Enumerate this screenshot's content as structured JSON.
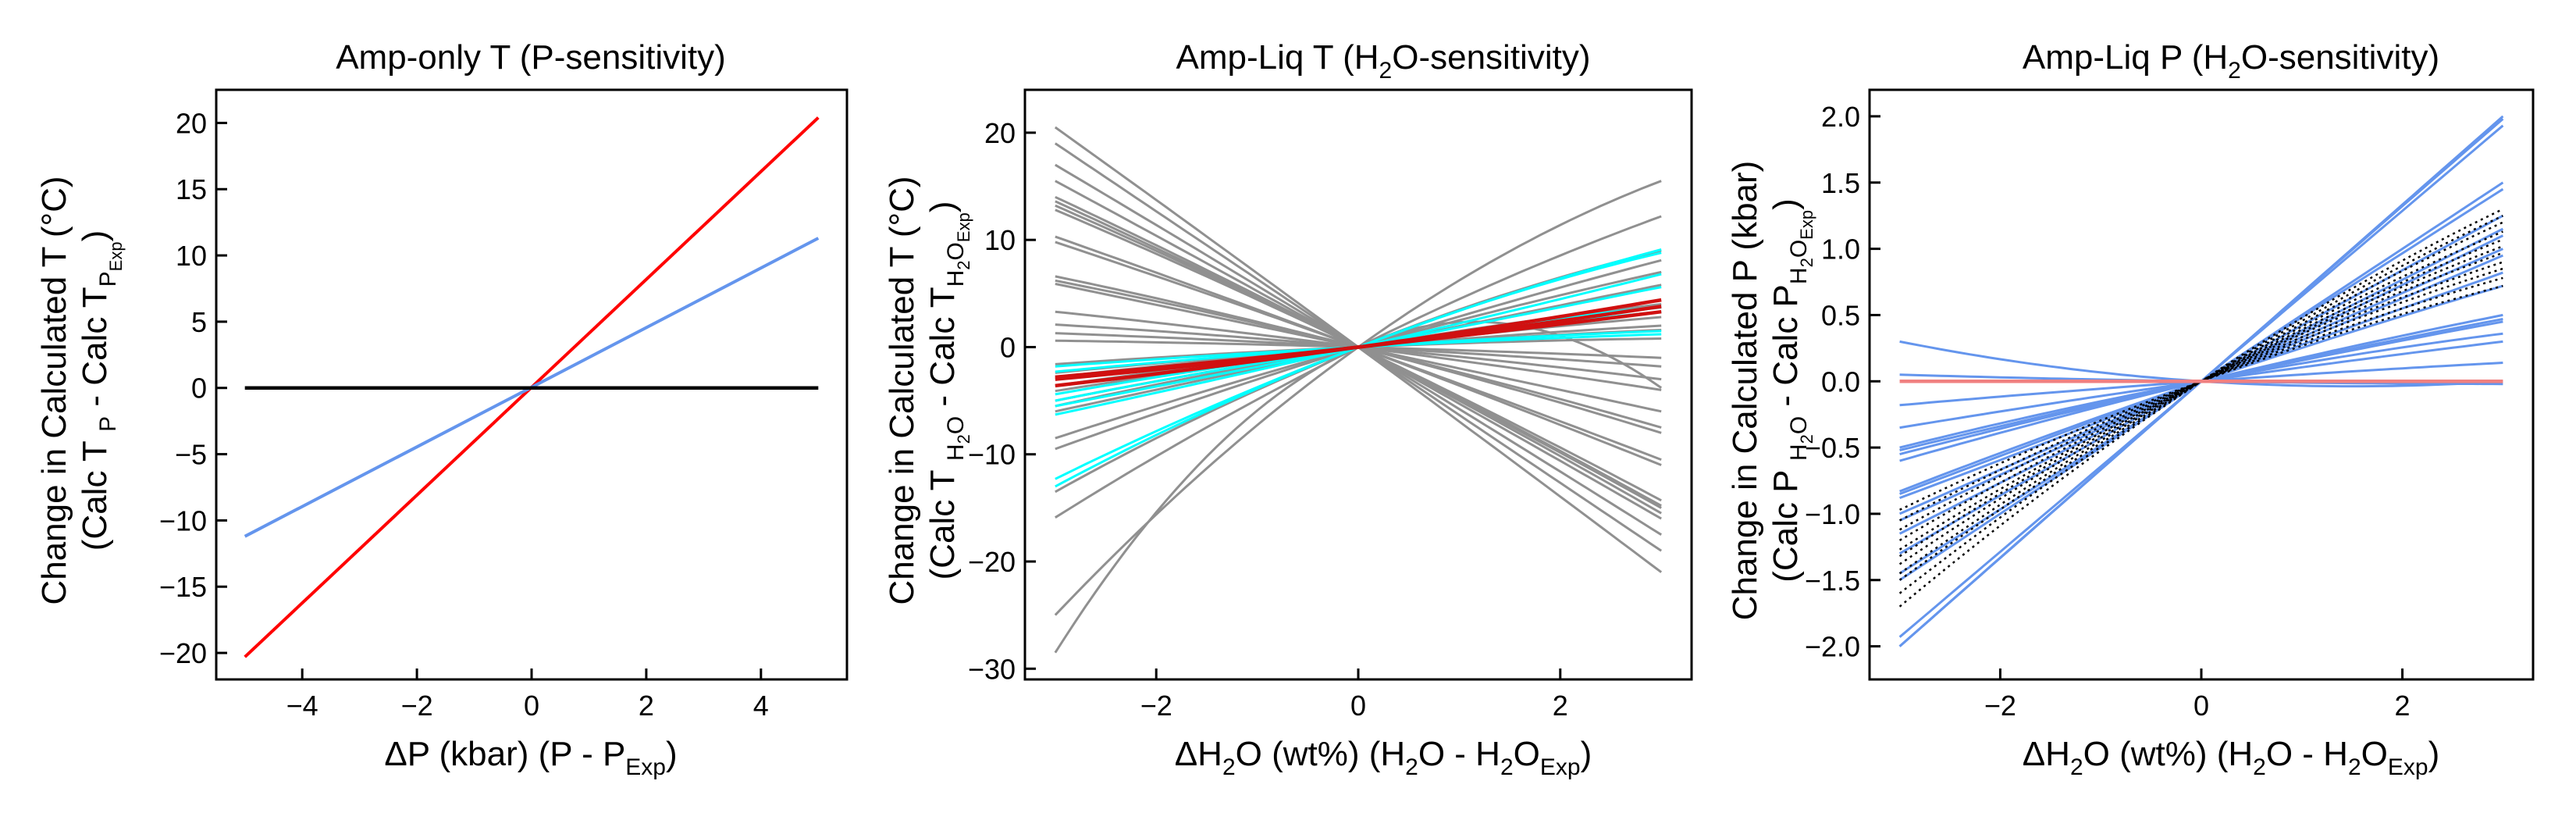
{
  "figure": {
    "panels": [
      {
        "title": "Amp-only T (P-sensitivity)",
        "xlabel_main": "ΔP (kbar) (P - P",
        "xlabel_sub": "Exp",
        "xlabel_tail": ")",
        "ylabel_line1": "Change in Calculated T (°C)",
        "ylabel_line2_a": "(Calc T ",
        "ylabel_line2_sub1": "P",
        "ylabel_line2_b": " - Calc T",
        "ylabel_line2_sub2": "P",
        "ylabel_line2_subsub": "Exp",
        "ylabel_line2_c": ")"
      },
      {
        "title_a": "Amp-Liq T (H",
        "title_sub": "2",
        "title_b": "O-sensitivity)",
        "xlabel_a": "ΔH",
        "xlabel_s1": "2",
        "xlabel_b": "O (wt%) (H",
        "xlabel_s2": "2",
        "xlabel_c": "O - H",
        "xlabel_s3": "2",
        "xlabel_d": "O",
        "xlabel_s4": "Exp",
        "xlabel_e": ")",
        "ylabel_line1": "Change in Calculated T (°C)",
        "ylabel_line2_a": "(Calc T ",
        "ylabel_line2_sub1": "H",
        "ylabel_line2_sub1b": "2",
        "ylabel_line2_sub1c": "O",
        "ylabel_line2_b": " - Calc T",
        "ylabel_line2_sub2": "H",
        "ylabel_line2_sub2b": "2",
        "ylabel_line2_sub2c": "O",
        "ylabel_line2_subsub": "Exp",
        "ylabel_line2_c": ")"
      },
      {
        "title_a": "Amp-Liq P (H",
        "title_sub": "2",
        "title_b": "O-sensitivity)",
        "xlabel_a": "ΔH",
        "xlabel_s1": "2",
        "xlabel_b": "O (wt%) (H",
        "xlabel_s2": "2",
        "xlabel_c": "O - H",
        "xlabel_s3": "2",
        "xlabel_d": "O",
        "xlabel_s4": "Exp",
        "xlabel_e": ")",
        "ylabel_line1": "Change in Calculated P (kbar)",
        "ylabel_line2_a": "(Calc P ",
        "ylabel_line2_sub1": "H",
        "ylabel_line2_sub1b": "2",
        "ylabel_line2_sub1c": "O",
        "ylabel_line2_b": " - Calc P",
        "ylabel_line2_sub2": "H",
        "ylabel_line2_sub2b": "2",
        "ylabel_line2_sub2c": "O",
        "ylabel_line2_subsub": "Exp",
        "ylabel_line2_c": ")"
      }
    ]
  },
  "chart_data": [
    {
      "type": "line",
      "title": "Amp-only T (P-sensitivity)",
      "xlabel": "ΔP (kbar) (P - P_Exp)",
      "ylabel": "Change in Calculated T (°C) (Calc T_P - Calc T_P_Exp)",
      "xlim": [
        -5.5,
        5.5
      ],
      "ylim": [
        -22,
        22.5
      ],
      "xticks": [
        -4,
        -2,
        0,
        2,
        4
      ],
      "yticks": [
        -20,
        -15,
        -10,
        -5,
        0,
        5,
        10,
        15,
        20
      ],
      "series": [
        {
          "color": "#ff0000",
          "width": 4,
          "x": [
            -5,
            5
          ],
          "y": [
            -20.3,
            20.4
          ]
        },
        {
          "color": "#6495ed",
          "width": 4,
          "x": [
            -5,
            5
          ],
          "y": [
            -11.2,
            11.3
          ]
        },
        {
          "color": "#000000",
          "width": 4.5,
          "x": [
            -5,
            5
          ],
          "y": [
            0,
            0
          ]
        }
      ]
    },
    {
      "type": "line",
      "title": "Amp-Liq T (H2O-sensitivity)",
      "xlabel": "ΔH2O (wt%) (H2O - H2O_Exp)",
      "ylabel": "Change in Calculated T (°C) (Calc T_H2O - Calc T_H2O_Exp)",
      "xlim": [
        -3.3,
        3.3
      ],
      "ylim": [
        -31,
        24
      ],
      "xticks": [
        -2,
        0,
        2
      ],
      "yticks": [
        -30,
        -20,
        -10,
        0,
        10,
        20
      ],
      "curve_model": "y = a*x + b*x^2, each series given by endpoint values at x=-3 and x=3",
      "series": [
        {
          "color": "#909090",
          "width": 3,
          "y_at_-3": 20.5,
          "y_at_3": -21
        },
        {
          "color": "#909090",
          "width": 3,
          "y_at_-3": 19,
          "y_at_3": -19
        },
        {
          "color": "#909090",
          "width": 3,
          "y_at_-3": 17,
          "y_at_3": -17.5
        },
        {
          "color": "#909090",
          "width": 3,
          "y_at_-3": 15.5,
          "y_at_3": -16
        },
        {
          "color": "#909090",
          "width": 3,
          "y_at_-3": 14,
          "y_at_3": -15.5
        },
        {
          "color": "#909090",
          "width": 3,
          "y_at_-3": 13.6,
          "y_at_3": -15
        },
        {
          "color": "#909090",
          "width": 3,
          "y_at_-3": 13.2,
          "y_at_3": -14.8
        },
        {
          "color": "#909090",
          "width": 3,
          "y_at_-3": 12.8,
          "y_at_3": -14.3
        },
        {
          "color": "#909090",
          "width": 3,
          "y_at_-3": 10.3,
          "y_at_3": -11
        },
        {
          "color": "#909090",
          "width": 3,
          "y_at_-3": 9.8,
          "y_at_3": -10.5
        },
        {
          "color": "#909090",
          "width": 3,
          "y_at_-3": 6.6,
          "y_at_3": -8
        },
        {
          "color": "#909090",
          "width": 3,
          "y_at_-3": 6.2,
          "y_at_3": -7.5
        },
        {
          "color": "#909090",
          "width": 3,
          "y_at_-3": 5.9,
          "y_at_3": -6
        },
        {
          "color": "#909090",
          "width": 3,
          "y_at_-3": 3.3,
          "y_at_3": -4
        },
        {
          "color": "#909090",
          "width": 3,
          "y_at_-3": 2.1,
          "y_at_3": -3
        },
        {
          "color": "#909090",
          "width": 3,
          "y_at_-3": 1.3,
          "y_at_3": -1.8
        },
        {
          "color": "#909090",
          "width": 3,
          "y_at_-3": 0.6,
          "y_at_3": -1
        },
        {
          "color": "#909090",
          "width": 3,
          "y_at_-3": -1.6,
          "y_at_3": 0.8
        },
        {
          "color": "#909090",
          "width": 3,
          "y_at_-3": -2.4,
          "y_at_3": 1.6
        },
        {
          "color": "#909090",
          "width": 3,
          "y_at_-3": -2.8,
          "y_at_3": 2.0
        },
        {
          "color": "#909090",
          "width": 3,
          "y_at_-3": -3.6,
          "y_at_3": 2.8
        },
        {
          "color": "#909090",
          "width": 3,
          "y_at_-3": -4.1,
          "y_at_3": 3.3
        },
        {
          "color": "#909090",
          "width": 3,
          "y_at_-3": -5,
          "y_at_3": 3.7
        },
        {
          "color": "#909090",
          "width": 3,
          "y_at_-3": -5.5,
          "y_at_3": 4
        },
        {
          "color": "#909090",
          "width": 3,
          "y_at_-3": -6,
          "y_at_3": 5.8
        },
        {
          "color": "#909090",
          "width": 3,
          "y_at_-3": -8.5,
          "y_at_3": 7
        },
        {
          "color": "#909090",
          "width": 3,
          "y_at_-3": -9.5,
          "y_at_3": 8.1
        },
        {
          "color": "#909090",
          "width": 3,
          "y_at_-3": -13.5,
          "y_at_3": 9
        },
        {
          "color": "#909090",
          "width": 3,
          "y_at_-3": -15.9,
          "y_at_3": 12.2
        },
        {
          "color": "#909090",
          "width": 3,
          "y_at_-3": -25,
          "y_at_3": 15.5
        },
        {
          "color": "#909090",
          "width": 3,
          "y_at_-3": -28.5,
          "y_at_3": -3.8
        },
        {
          "color": "#00ffff",
          "width": 3,
          "y_at_-3": -13,
          "y_at_3": 8.8
        },
        {
          "color": "#00ffff",
          "width": 3,
          "y_at_-3": -12.3,
          "y_at_3": 9.1
        },
        {
          "color": "#00ffff",
          "width": 3,
          "y_at_-3": -6.3,
          "y_at_3": 6.8
        },
        {
          "color": "#00ffff",
          "width": 3,
          "y_at_-3": -5.5,
          "y_at_3": 5.6
        },
        {
          "color": "#00ffff",
          "width": 3,
          "y_at_-3": -5,
          "y_at_3": 3.8
        },
        {
          "color": "#00ffff",
          "width": 3,
          "y_at_-3": -4.4,
          "y_at_3": 3.3
        },
        {
          "color": "#00ffff",
          "width": 3,
          "y_at_-3": -2.3,
          "y_at_3": 1.5
        },
        {
          "color": "#00ffff",
          "width": 3,
          "y_at_-3": -1.8,
          "y_at_3": 1.2
        },
        {
          "color": "#d01010",
          "width": 4.5,
          "y_at_-3": -3.6,
          "y_at_3": 4.4
        },
        {
          "color": "#d01010",
          "width": 4.5,
          "y_at_-3": -3.0,
          "y_at_3": 3.8
        },
        {
          "color": "#d01010",
          "width": 4.5,
          "y_at_-3": -2.8,
          "y_at_3": 3.3
        }
      ]
    },
    {
      "type": "line",
      "title": "Amp-Liq P (H2O-sensitivity)",
      "xlabel": "ΔH2O (wt%) (H2O - H2O_Exp)",
      "ylabel": "Change in Calculated P (kbar) (Calc P_H2O - Calc P_H2O_Exp)",
      "xlim": [
        -3.3,
        3.3
      ],
      "ylim": [
        -2.25,
        2.2
      ],
      "xticks": [
        -2,
        0,
        2
      ],
      "yticks": [
        -2.0,
        -1.5,
        -1.0,
        -0.5,
        0.0,
        0.5,
        1.0,
        1.5,
        2.0
      ],
      "curve_model": "y = a*x + b*x^2, each series given by endpoint values at x=-3 and x=3",
      "series": [
        {
          "color": "#6495ed",
          "width": 3,
          "y_at_-3": -2.0,
          "y_at_3": 2.0
        },
        {
          "color": "#6495ed",
          "width": 3,
          "y_at_-3": -2.0,
          "y_at_3": 1.98
        },
        {
          "color": "#6495ed",
          "width": 3,
          "y_at_-3": -1.93,
          "y_at_3": 1.93
        },
        {
          "color": "#6495ed",
          "width": 3,
          "y_at_-3": -1.5,
          "y_at_3": 1.5
        },
        {
          "color": "#6495ed",
          "width": 3,
          "y_at_-3": -1.45,
          "y_at_3": 1.45
        },
        {
          "color": "#6495ed",
          "width": 3,
          "y_at_-3": -1.3,
          "y_at_3": 1.25
        },
        {
          "color": "#6495ed",
          "width": 3,
          "y_at_-3": -1.15,
          "y_at_3": 1.15
        },
        {
          "color": "#6495ed",
          "width": 3,
          "y_at_-3": -1.05,
          "y_at_3": 1.1
        },
        {
          "color": "#6495ed",
          "width": 3,
          "y_at_-3": -1.0,
          "y_at_3": 1.0
        },
        {
          "color": "#6495ed",
          "width": 3,
          "y_at_-3": -0.88,
          "y_at_3": 0.95
        },
        {
          "color": "#6495ed",
          "width": 3,
          "y_at_-3": -0.85,
          "y_at_3": 0.82
        },
        {
          "color": "#6495ed",
          "width": 3,
          "y_at_-3": -0.83,
          "y_at_3": 0.72
        },
        {
          "color": "#6495ed",
          "width": 3,
          "y_at_-3": -0.6,
          "y_at_3": 0.5
        },
        {
          "color": "#6495ed",
          "width": 3,
          "y_at_-3": -0.55,
          "y_at_3": 0.47
        },
        {
          "color": "#6495ed",
          "width": 3,
          "y_at_-3": -0.52,
          "y_at_3": 0.45
        },
        {
          "color": "#6495ed",
          "width": 3,
          "y_at_-3": -0.5,
          "y_at_3": 0.36
        },
        {
          "color": "#6495ed",
          "width": 3,
          "y_at_-3": -0.35,
          "y_at_3": 0.3
        },
        {
          "color": "#6495ed",
          "width": 3,
          "y_at_-3": -0.18,
          "y_at_3": 0.14
        },
        {
          "color": "#6495ed",
          "width": 3,
          "y_at_-3": 0.05,
          "y_at_3": -0.02
        },
        {
          "color": "#6495ed",
          "width": 3,
          "y_at_-3": 0.3,
          "y_at_3": 0.0
        },
        {
          "color": "#000000",
          "width": 2.5,
          "dash": "3,5",
          "y_at_-3": -1.7,
          "y_at_3": 1.3
        },
        {
          "color": "#000000",
          "width": 2.5,
          "dash": "3,5",
          "y_at_-3": -1.6,
          "y_at_3": 1.25
        },
        {
          "color": "#000000",
          "width": 2.5,
          "dash": "3,5",
          "y_at_-3": -1.5,
          "y_at_3": 1.2
        },
        {
          "color": "#000000",
          "width": 2.5,
          "dash": "3,5",
          "y_at_-3": -1.45,
          "y_at_3": 1.13
        },
        {
          "color": "#000000",
          "width": 2.5,
          "dash": "3,5",
          "y_at_-3": -1.38,
          "y_at_3": 1.07
        },
        {
          "color": "#000000",
          "width": 2.5,
          "dash": "3,5",
          "y_at_-3": -1.32,
          "y_at_3": 1.02
        },
        {
          "color": "#000000",
          "width": 2.5,
          "dash": "3,5",
          "y_at_-3": -1.27,
          "y_at_3": 0.97
        },
        {
          "color": "#000000",
          "width": 2.5,
          "dash": "3,5",
          "y_at_-3": -1.2,
          "y_at_3": 0.9
        },
        {
          "color": "#000000",
          "width": 2.5,
          "dash": "3,5",
          "y_at_-3": -1.12,
          "y_at_3": 0.85
        },
        {
          "color": "#000000",
          "width": 2.5,
          "dash": "3,5",
          "y_at_-3": -1.05,
          "y_at_3": 0.78
        },
        {
          "color": "#000000",
          "width": 2.5,
          "dash": "3,5",
          "y_at_-3": -0.97,
          "y_at_3": 0.72
        },
        {
          "color": "#f08080",
          "width": 4.5,
          "y_at_-3": 0.0,
          "y_at_3": 0.0
        }
      ]
    }
  ]
}
